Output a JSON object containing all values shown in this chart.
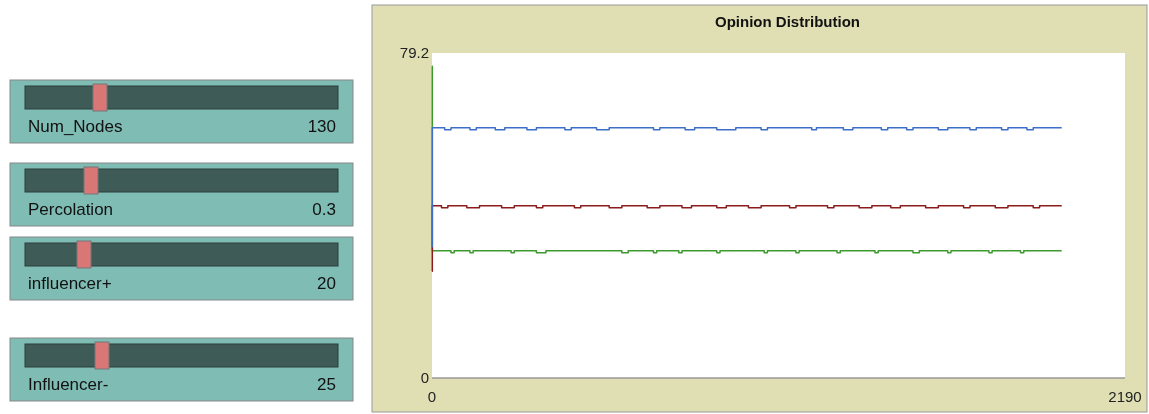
{
  "chart_data": {
    "type": "step",
    "title": "Opinion Distribution",
    "xlim": [
      0,
      2190
    ],
    "xticks": [
      0,
      2190
    ],
    "ylim": [
      0,
      79.2
    ],
    "yticks": [
      0,
      79.2
    ],
    "annotations": [
      "Num_Nodes",
      "130",
      "Percolation",
      "0.3",
      "influencer+",
      "20",
      "Influencer-",
      "25"
    ],
    "series": [
      {
        "color": "#3d6fc8",
        "x": [
          0,
          1,
          40,
          60,
          120,
          140,
          200,
          230,
          300,
          330,
          420,
          440,
          520,
          560,
          700,
          720,
          800,
          830,
          900,
          960,
          1040,
          1060,
          1200,
          1215,
          1300,
          1330,
          1420,
          1440,
          1500,
          1520,
          1600,
          1630,
          1700,
          1720,
          1800,
          1820,
          1880,
          1900,
          1990
        ],
        "values": [
          32,
          61,
          60.5,
          61,
          60.5,
          61,
          60.5,
          61,
          60.5,
          61,
          60.5,
          61,
          60.5,
          61,
          60.5,
          61,
          60.5,
          61,
          60.5,
          61,
          60.5,
          61,
          60.5,
          61,
          60.5,
          61,
          60.5,
          61,
          60.5,
          61,
          60.5,
          61,
          60.5,
          61,
          60.5,
          61,
          60.5,
          61,
          61
        ]
      },
      {
        "color": "#8b1c1c",
        "x": [
          0,
          1,
          30,
          50,
          110,
          150,
          220,
          260,
          330,
          350,
          450,
          470,
          560,
          600,
          680,
          720,
          790,
          820,
          900,
          930,
          1000,
          1040,
          1130,
          1150,
          1250,
          1270,
          1350,
          1390,
          1450,
          1480,
          1560,
          1600,
          1680,
          1700,
          1780,
          1820,
          1900,
          1920,
          1990
        ],
        "values": [
          26,
          42,
          41.5,
          42,
          41.5,
          42,
          41.5,
          42,
          41.5,
          42,
          41.5,
          42,
          41.5,
          42,
          41.5,
          42,
          41.5,
          42,
          41.5,
          42,
          41.5,
          42,
          41.5,
          42,
          41.5,
          42,
          41.5,
          42,
          41.5,
          42,
          41.5,
          42,
          41.5,
          42,
          41.5,
          42,
          41.5,
          42,
          42
        ]
      },
      {
        "color": "#3d9a2e",
        "x": [
          0,
          1,
          60,
          70,
          120,
          130,
          250,
          260,
          330,
          360,
          600,
          620,
          700,
          710,
          780,
          790,
          900,
          910,
          1050,
          1060,
          1150,
          1160,
          1280,
          1290,
          1400,
          1410,
          1520,
          1540,
          1630,
          1640,
          1760,
          1770,
          1860,
          1870,
          1990
        ],
        "values": [
          76,
          31,
          30.5,
          31,
          30.5,
          31,
          30.5,
          31,
          30.5,
          31,
          30.5,
          31,
          30.5,
          31,
          30.5,
          31,
          30.5,
          31,
          30.5,
          31,
          30.5,
          31,
          30.5,
          31,
          30.5,
          31,
          30.5,
          31,
          30.5,
          31,
          30.5,
          31,
          30.5,
          31,
          31
        ]
      }
    ]
  }
}
